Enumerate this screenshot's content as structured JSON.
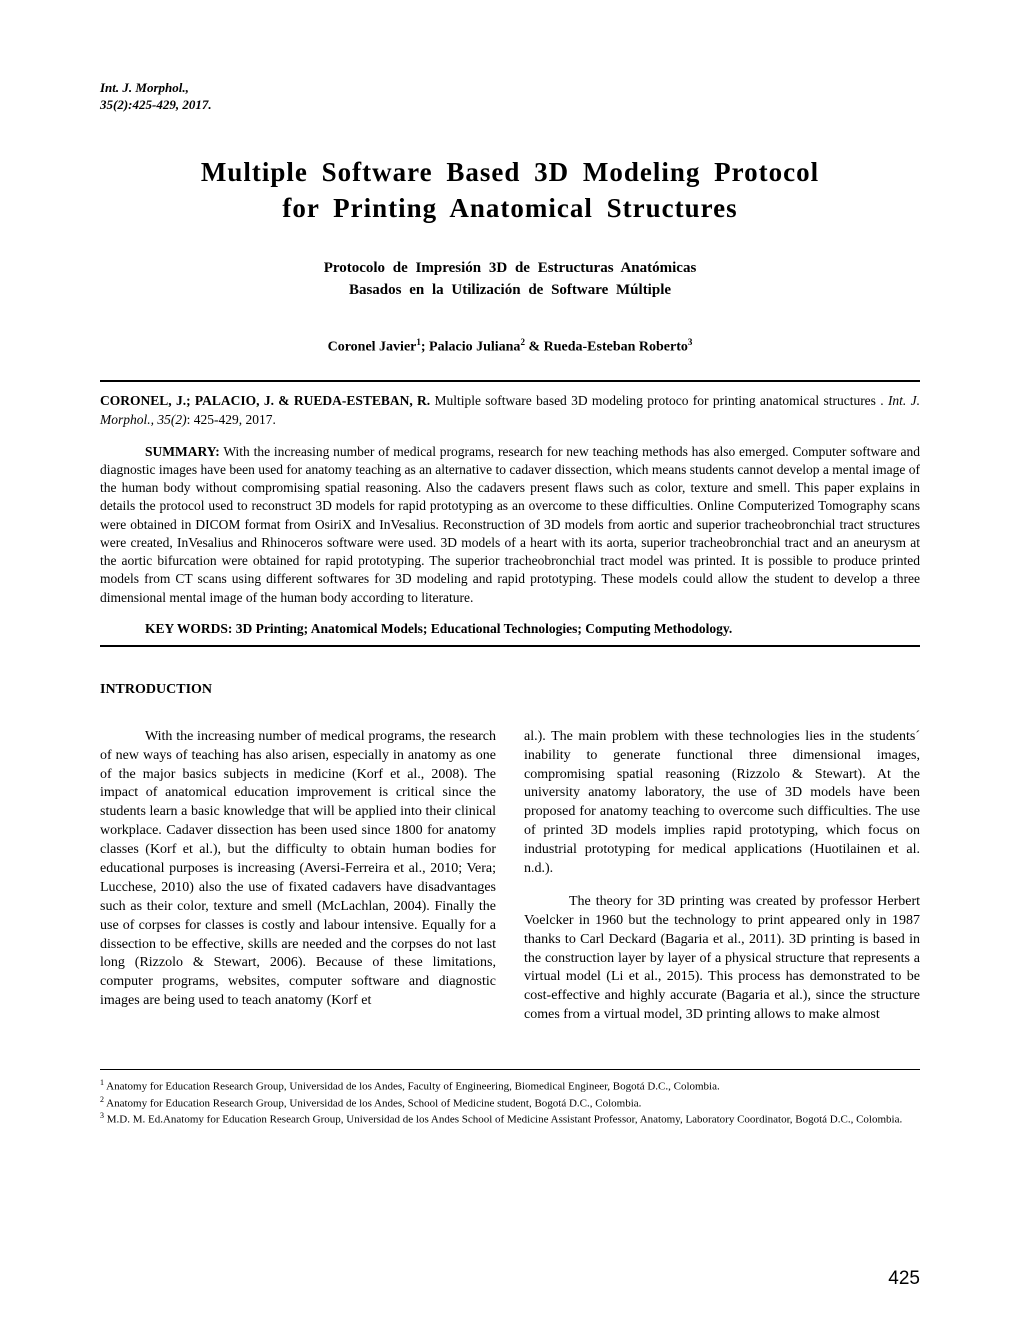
{
  "journal": {
    "name": "Int. J. Morphol.,",
    "issue": "35(2):425-429, 2017."
  },
  "title_en_line1": "Multiple  Software  Based  3D  Modeling  Protocol",
  "title_en_line2": "for  Printing  Anatomical   Structures",
  "title_es_line1": "Protocolo  de  Impresión  3D  de  Estructuras  Anatómicas",
  "title_es_line2": "Basados  en  la  Utilización  de  Software  Múltiple",
  "authors_html": "Coronel Javier<sup>1</sup>; Palacio Juliana<sup>2</sup> & Rueda-Esteban Roberto<sup>3</sup>",
  "citation": {
    "authors_bold": "CORONEL, J.; PALACIO, J. & RUEDA-ESTEBAN, R.",
    "text_plain": " Multiple software based 3D modeling protoco for printing anatomical structures . ",
    "journal_ital": "Int. J. Morphol., 35(2)",
    "tail": ": 425-429, 2017."
  },
  "summary": {
    "label": "SUMMARY:",
    "text": " With the increasing number of medical programs, research for new teaching methods has also emerged. Computer software and diagnostic images have been used for anatomy teaching as an alternative to cadaver dissection, which means students cannot develop a mental image of the human body without compromising spatial reasoning. Also the cadavers present flaws such as color, texture and smell. This paper explains in details the protocol used to reconstruct 3D models for rapid prototyping as an overcome to these difficulties. Online Computerized Tomography scans were obtained in DICOM format from OsiriX and InVesalius. Reconstruction of 3D models from aortic and superior tracheobronchial tract structures were created, InVesalius and Rhinoceros software were used. 3D models of a heart with its aorta, superior tracheobronchial tract and an aneurysm at the aortic bifurcation were obtained for rapid prototyping.  The superior tracheobronchial tract model was printed. It is possible to produce printed models from CT scans using different softwares for 3D modeling and rapid prototyping. These models could allow the student to develop a three dimensional mental image of the human body according to literature."
  },
  "keywords": "KEY WORDS: 3D Printing; Anatomical Models; Educational Technologies; Computing Methodology.",
  "section_heading": "INTRODUCTION",
  "body": {
    "col1_p1": "With the increasing number of medical programs, the research of new ways of teaching has also arisen, especially in anatomy as one of the major basics subjects in medicine (Korf et al., 2008). The impact of anatomical education improvement is critical since the students learn a basic knowledge that will be applied into their clinical workplace. Cadaver dissection has been used since 1800 for anatomy classes (Korf et al.), but the difficulty to obtain human bodies for educational purposes is increasing (Aversi-Ferreira et al., 2010; Vera; Lucchese, 2010) also the use of fixated cadavers have disadvantages such as their color, texture and smell (McLachlan, 2004). Finally the use of corpses for classes is costly and labour intensive. Equally for a dissection to be effective, skills are needed and the corpses do not last long (Rizzolo & Stewart, 2006). Because of these limitations, computer programs, websites, computer software and diagnostic images are being used to teach anatomy (Korf et",
    "col2_p1": "al.). The main problem with these technologies lies in the students´ inability to generate functional three dimensional images, compromising spatial reasoning (Rizzolo & Stewart). At the university anatomy laboratory, the use of 3D models have been proposed for anatomy teaching to overcome such difficulties. The use of printed 3D models implies rapid prototyping, which focus on industrial prototyping for medical applications (Huotilainen et al. n.d.).",
    "col2_p2": "The theory for 3D printing was created by professor Herbert Voelcker in 1960 but the technology to print appeared only in 1987 thanks to Carl Deckard (Bagaria et al., 2011). 3D printing is based in the construction layer by layer of a physical structure that represents a virtual model (Li et al., 2015). This process has demonstrated to be cost-effective and highly accurate (Bagaria et al.), since the structure comes from a virtual model, 3D printing allows to make almost"
  },
  "footnotes": {
    "f1": "Anatomy for Education Research Group, Universidad de los Andes, Faculty of Engineering, Biomedical Engineer, Bogotá D.C., Colombia.",
    "f2": "Anatomy for Education Research Group, Universidad de los Andes, School of Medicine student, Bogotá D.C., Colombia.",
    "f3": "M.D.  M. Ed.Anatomy for Education Research Group, Universidad de los Andes School of Medicine Assistant Professor, Anatomy, Laboratory Coordinator, Bogotá D.C., Colombia."
  },
  "page_number": "425",
  "colors": {
    "text": "#000000",
    "background": "#ffffff",
    "rule": "#000000"
  },
  "typography": {
    "body_family": "Times New Roman",
    "title_size_pt": 20,
    "subtitle_size_pt": 11,
    "body_size_pt": 10.5,
    "footnote_size_pt": 8,
    "pagenum_family": "Arial",
    "pagenum_size_pt": 14
  }
}
